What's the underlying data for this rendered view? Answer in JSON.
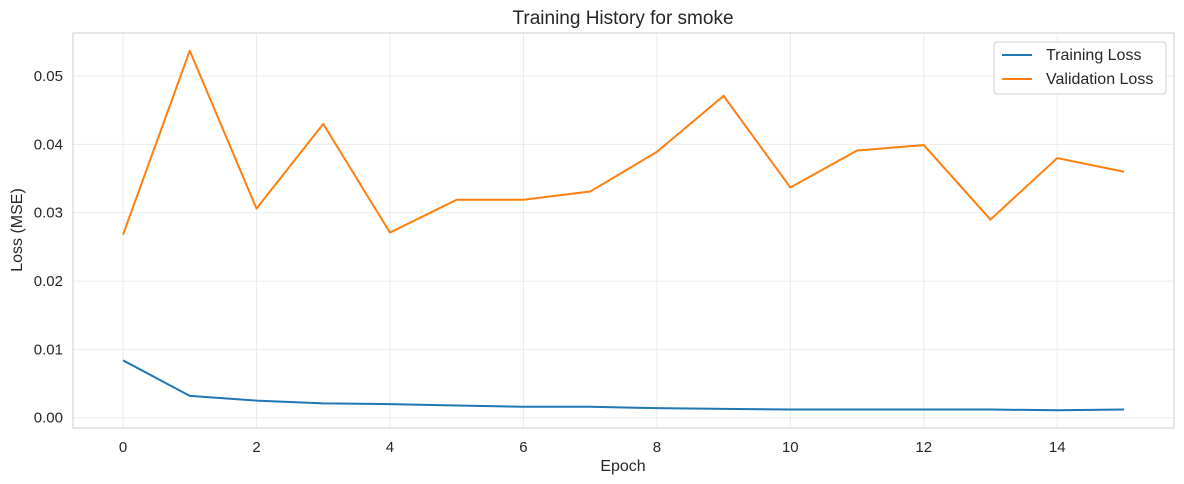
{
  "chart_data": {
    "type": "line",
    "title": "Training History for smoke",
    "xlabel": "Epoch",
    "ylabel": "Loss (MSE)",
    "xlim": [
      -0.75,
      15.75
    ],
    "ylim": [
      -0.0015,
      0.0563
    ],
    "xticks": [
      0,
      2,
      4,
      6,
      8,
      10,
      12,
      14
    ],
    "xtick_labels": [
      "0",
      "2",
      "4",
      "6",
      "8",
      "10",
      "12",
      "14"
    ],
    "yticks": [
      0.0,
      0.01,
      0.02,
      0.03,
      0.04,
      0.05
    ],
    "ytick_labels": [
      "0.00",
      "0.01",
      "0.02",
      "0.03",
      "0.04",
      "0.05"
    ],
    "grid": true,
    "legend_position": "top-right",
    "x": [
      0,
      1,
      2,
      3,
      4,
      5,
      6,
      7,
      8,
      9,
      10,
      11,
      12,
      13,
      14,
      15
    ],
    "series": [
      {
        "name": "Training Loss",
        "color": "#1f77b4",
        "values": [
          0.0084,
          0.0032,
          0.0025,
          0.0021,
          0.002,
          0.0018,
          0.0016,
          0.0016,
          0.0014,
          0.0013,
          0.0012,
          0.0012,
          0.0012,
          0.0012,
          0.0011,
          0.0012
        ]
      },
      {
        "name": "Validation Loss",
        "color": "#ff7f0e",
        "values": [
          0.0268,
          0.0537,
          0.0306,
          0.043,
          0.0271,
          0.0319,
          0.0319,
          0.0331,
          0.0389,
          0.0471,
          0.0337,
          0.0391,
          0.0399,
          0.029,
          0.038,
          0.036
        ]
      }
    ]
  }
}
